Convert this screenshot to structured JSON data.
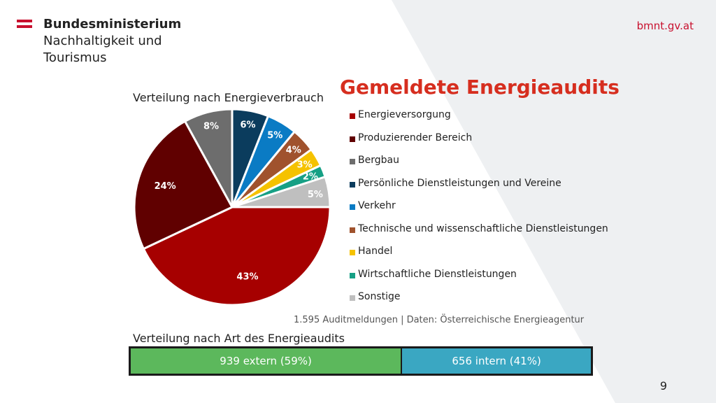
{
  "header": {
    "org_lines": [
      "Bundesministerium",
      "Nachhaltigkeit und",
      "Tourismus"
    ],
    "website": "bmnt.gv.at"
  },
  "slide": {
    "title": "Gemeldete Energieaudits",
    "source": "1.595 Auditmeldungen | Daten: Österreichische Energieagentur",
    "page_number": "9"
  },
  "colors": {
    "title": "#d62e1f",
    "website": "#c8102e",
    "flag_red": "#c8102e"
  },
  "chart_data": [
    {
      "type": "pie",
      "title": "Verteilung nach Energieverbrauch",
      "slices": [
        {
          "label": "Energieversorgung",
          "value": 43,
          "display": "43%",
          "color": "#a60000"
        },
        {
          "label": "Produzierender Bereich",
          "value": 24,
          "display": "24%",
          "color": "#600000"
        },
        {
          "label": "Bergbau",
          "value": 8,
          "display": "8%",
          "color": "#6d6d6d"
        },
        {
          "label": "Persönliche Dienstleistungen und Vereine",
          "value": 6,
          "display": "6%",
          "color": "#0b3c5d"
        },
        {
          "label": "Verkehr",
          "value": 5,
          "display": "5%",
          "color": "#0a7bc4"
        },
        {
          "label": "Technische und wissenschaftliche Dienstleistungen",
          "value": 4,
          "display": "4%",
          "color": "#a0522d"
        },
        {
          "label": "Handel",
          "value": 3,
          "display": "3%",
          "color": "#f5c200"
        },
        {
          "label": "Wirtschaftliche Dienstleistungen",
          "value": 2,
          "display": "2%",
          "color": "#16a085"
        },
        {
          "label": "Sonstige",
          "value": 5,
          "display": "5%",
          "color": "#bfbfbf"
        }
      ],
      "legend": "right"
    },
    {
      "type": "bar",
      "title": "Verteilung nach Art des Energieaudits",
      "segments": [
        {
          "label": "939 extern (59%)",
          "value": 939,
          "percent": 59,
          "color": "#5cb85c"
        },
        {
          "label": "656 intern (41%)",
          "value": 656,
          "percent": 41,
          "color": "#3aa7c2"
        }
      ]
    }
  ]
}
